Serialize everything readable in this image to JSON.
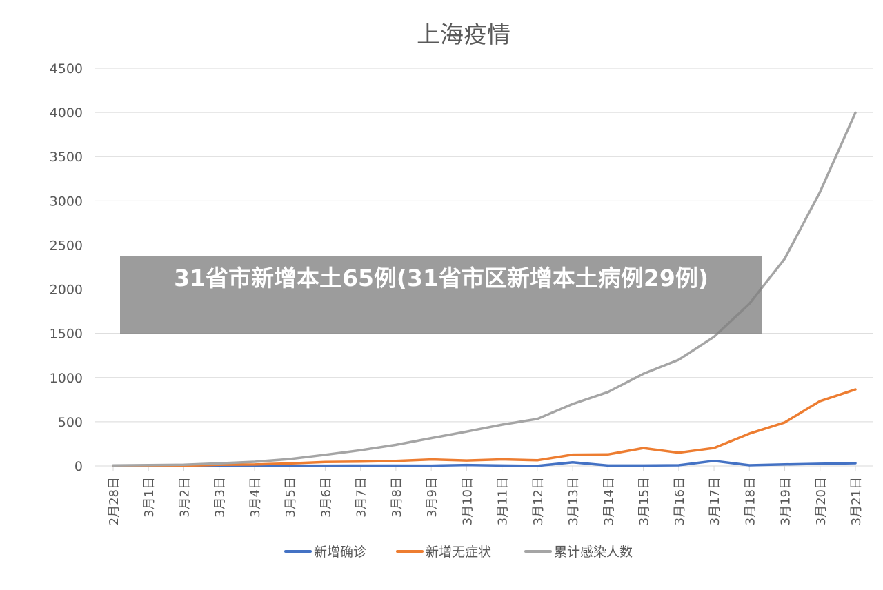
{
  "overlay": {
    "headline": "31省市新增本土65例(31省市区新增本土病例29例)"
  },
  "chart_data": {
    "type": "line",
    "title": "上海疫情",
    "xlabel": "",
    "ylabel": "",
    "ylim": [
      0,
      4500
    ],
    "yticks": [
      0,
      500,
      1000,
      1500,
      2000,
      2500,
      3000,
      3500,
      4000,
      4500
    ],
    "grid": true,
    "legend_position": "bottom",
    "categories": [
      "2月28日",
      "3月1日",
      "3月2日",
      "3月3日",
      "3月4日",
      "3月5日",
      "3月6日",
      "3月7日",
      "3月8日",
      "3月9日",
      "3月10日",
      "3月11日",
      "3月12日",
      "3月13日",
      "3月14日",
      "3月15日",
      "3月16日",
      "3月17日",
      "3月18日",
      "3月19日",
      "3月20日",
      "3月21日"
    ],
    "series": [
      {
        "name": "新增确诊",
        "color": "#4472c4",
        "values": [
          1,
          1,
          1,
          2,
          2,
          3,
          3,
          4,
          4,
          3,
          11,
          5,
          1,
          41,
          5,
          5,
          8,
          57,
          8,
          17,
          24,
          31
        ]
      },
      {
        "name": "新增无症状",
        "color": "#ed7d31",
        "values": [
          1,
          2,
          3,
          14,
          16,
          28,
          45,
          48,
          57,
          73,
          62,
          74,
          64,
          128,
          130,
          202,
          150,
          203,
          366,
          492,
          734,
          865
        ]
      },
      {
        "name": "累计感染人数",
        "color": "#a5a5a5",
        "values": [
          6,
          9,
          13,
          29,
          47,
          78,
          126,
          178,
          239,
          315,
          388,
          467,
          532,
          701,
          836,
          1043,
          1201,
          1461,
          1835,
          2344,
          3102,
          3998
        ]
      }
    ]
  }
}
